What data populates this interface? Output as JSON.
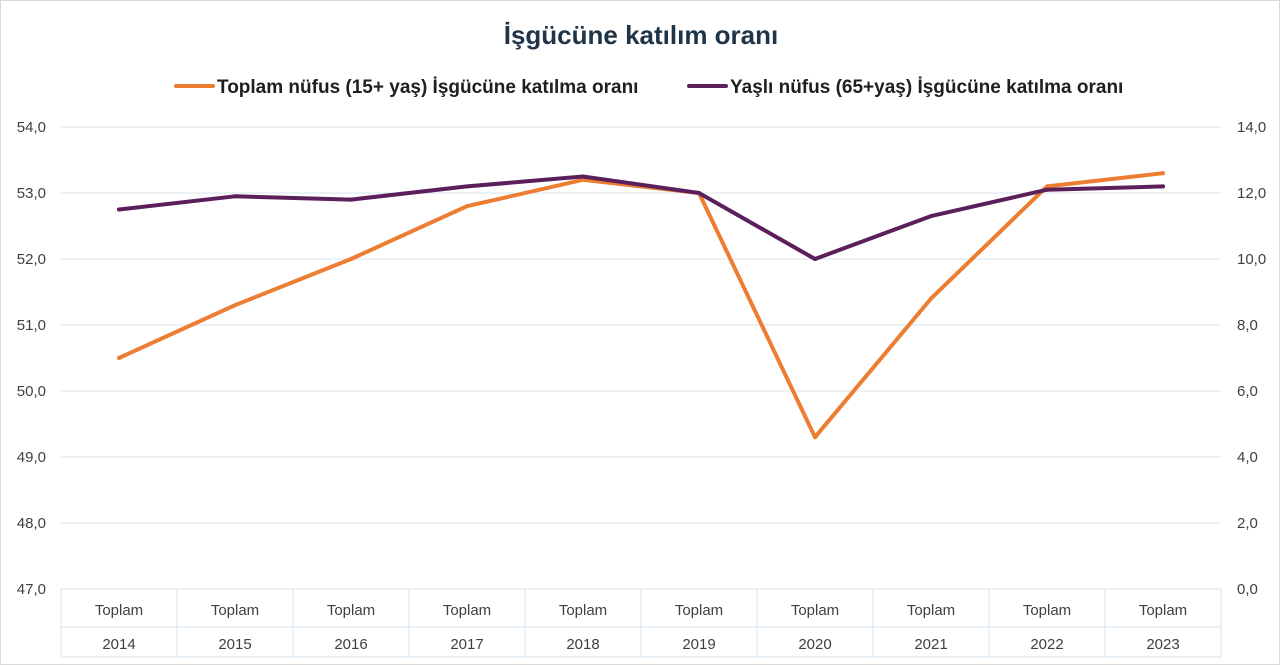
{
  "chart_data": {
    "type": "line",
    "title": "İşgücüne katılım oranı",
    "categories": [
      [
        "Toplam",
        "2014"
      ],
      [
        "Toplam",
        "2015"
      ],
      [
        "Toplam",
        "2016"
      ],
      [
        "Toplam",
        "2017"
      ],
      [
        "Toplam",
        "2018"
      ],
      [
        "Toplam",
        "2019"
      ],
      [
        "Toplam",
        "2020"
      ],
      [
        "Toplam",
        "2021"
      ],
      [
        "Toplam",
        "2022"
      ],
      [
        "Toplam",
        "2023"
      ]
    ],
    "series": [
      {
        "name": "Toplam nüfus (15+ yaş) İşgücüne katılma oranı",
        "axis": "left",
        "color": "#ed7d31",
        "values": [
          50.5,
          51.3,
          52.0,
          52.8,
          53.2,
          53.0,
          49.3,
          51.4,
          53.1,
          53.3
        ]
      },
      {
        "name": "Yaşlı nüfus (65+yaş) İşgücüne katılma oranı",
        "axis": "right",
        "color": "#5b1f5b",
        "values": [
          11.5,
          11.9,
          11.8,
          12.2,
          12.5,
          12.0,
          10.0,
          11.3,
          12.1,
          12.2
        ]
      }
    ],
    "y_left": {
      "ylim": [
        47.0,
        54.0
      ],
      "ticks": [
        "47,0",
        "48,0",
        "49,0",
        "50,0",
        "51,0",
        "52,0",
        "53,0",
        "54,0"
      ]
    },
    "y_right": {
      "ylim": [
        0.0,
        14.0
      ],
      "ticks": [
        "0,0",
        "2,0",
        "4,0",
        "6,0",
        "8,0",
        "10,0",
        "12,0",
        "14,0"
      ]
    },
    "grid": true,
    "legend_position": "top"
  }
}
